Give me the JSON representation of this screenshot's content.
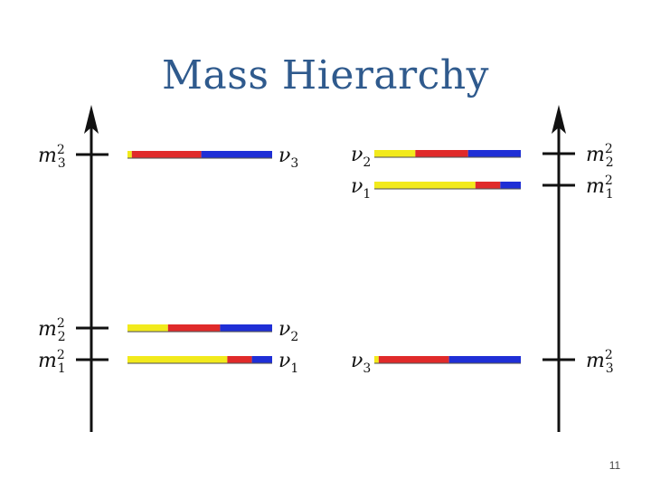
{
  "slide": {
    "title": "Mass Hierarchy",
    "page_number": "11"
  },
  "colors": {
    "title": "#2f5a8d",
    "nu_e": "#f2ea1c",
    "nu_mu": "#e02a2a",
    "nu_tau": "#1f2fd6",
    "axis": "#111111"
  },
  "normal_hierarchy": {
    "levels": [
      {
        "mass_label": "m",
        "mass_sub": "3",
        "mass_sup": "2",
        "nu_label": "ν",
        "nu_sub": "3",
        "fractions": [
          0.03,
          0.48,
          0.49
        ]
      },
      {
        "mass_label": "m",
        "mass_sub": "2",
        "mass_sup": "2",
        "nu_label": "ν",
        "nu_sub": "2",
        "fractions": [
          0.28,
          0.36,
          0.36
        ]
      },
      {
        "mass_label": "m",
        "mass_sub": "1",
        "mass_sup": "2",
        "nu_label": "ν",
        "nu_sub": "1",
        "fractions": [
          0.69,
          0.17,
          0.14
        ]
      }
    ]
  },
  "inverted_hierarchy": {
    "levels": [
      {
        "mass_label": "m",
        "mass_sub": "2",
        "mass_sup": "2",
        "nu_label": "ν",
        "nu_sub": "2",
        "fractions": [
          0.28,
          0.36,
          0.36
        ]
      },
      {
        "mass_label": "m",
        "mass_sub": "1",
        "mass_sup": "2",
        "nu_label": "ν",
        "nu_sub": "1",
        "fractions": [
          0.69,
          0.17,
          0.14
        ]
      },
      {
        "mass_label": "m",
        "mass_sub": "3",
        "mass_sup": "2",
        "nu_label": "ν",
        "nu_sub": "3",
        "fractions": [
          0.03,
          0.48,
          0.49
        ]
      }
    ]
  }
}
